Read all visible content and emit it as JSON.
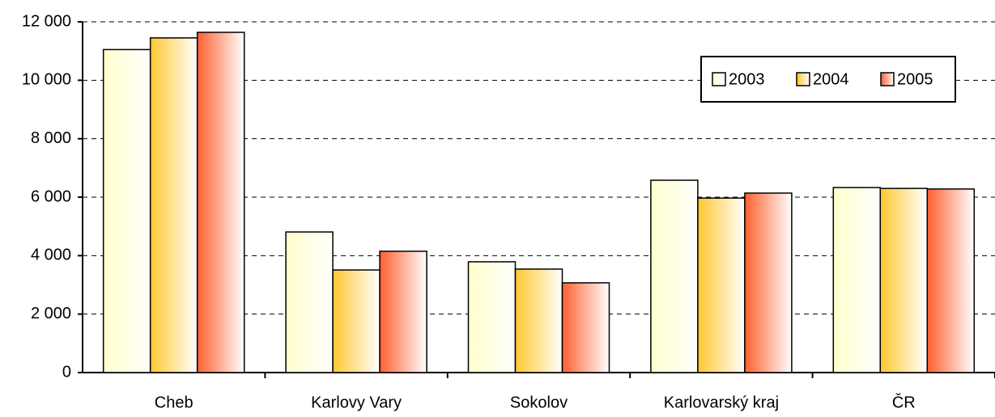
{
  "chart_data": {
    "type": "bar",
    "categories": [
      "Cheb",
      "Karlovy Vary",
      "Sokolov",
      "Karlovarský kraj",
      "ČR"
    ],
    "series": [
      {
        "name": "2003",
        "color": "#ffffcc",
        "values": [
          11050,
          4810,
          3790,
          6580,
          6330
        ]
      },
      {
        "name": "2004",
        "color": "#ffc830",
        "values": [
          11450,
          3510,
          3540,
          5970,
          6300
        ]
      },
      {
        "name": "2005",
        "color": "#ff6030",
        "values": [
          11640,
          4150,
          3070,
          6140,
          6280
        ]
      }
    ],
    "ylim": [
      0,
      12000
    ],
    "yticks": [
      0,
      {
        "value": 2000,
        "label": "2 000"
      },
      {
        "value": 4000,
        "label": "4 000"
      },
      {
        "value": 6000,
        "label": "6 000"
      },
      {
        "value": 8000,
        "label": "8 000"
      },
      {
        "value": 10000,
        "label": "10 000"
      },
      {
        "value": 12000,
        "label": "12 000"
      }
    ],
    "grid": true,
    "legend": "top-right"
  }
}
